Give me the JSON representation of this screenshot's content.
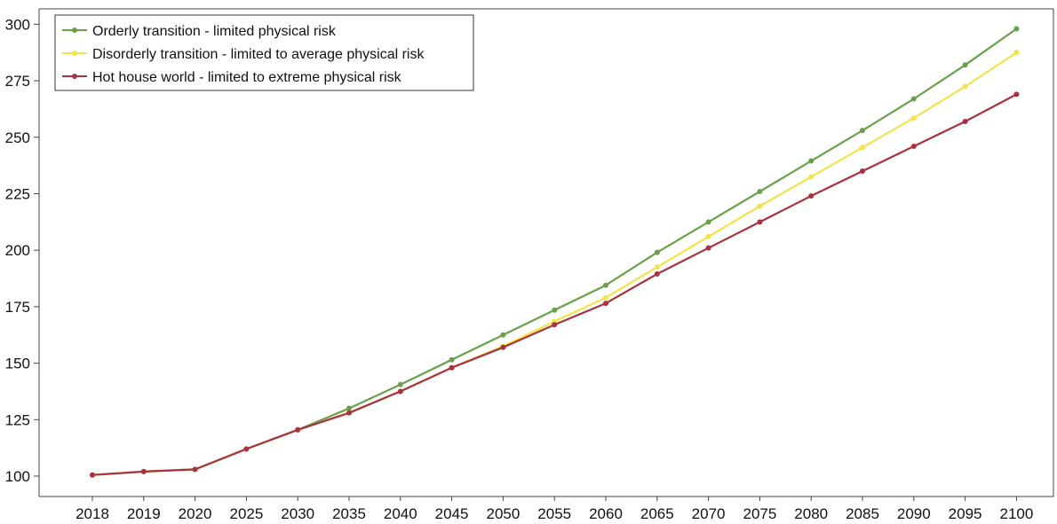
{
  "chart_data": {
    "type": "line",
    "title": "",
    "xlabel": "",
    "ylabel": "",
    "categories": [
      "2018",
      "2019",
      "2020",
      "2025",
      "2030",
      "2035",
      "2040",
      "2045",
      "2050",
      "2055",
      "2060",
      "2065",
      "2070",
      "2075",
      "2080",
      "2085",
      "2090",
      "2095",
      "2100"
    ],
    "ylim": [
      92,
      305
    ],
    "yticks": [
      100,
      125,
      150,
      175,
      200,
      225,
      250,
      275,
      300
    ],
    "grid": false,
    "legend": "top-left",
    "series": [
      {
        "name": "Orderly transition - limited physical risk",
        "color": "#6aa04c",
        "values": [
          100.5,
          102,
          103,
          112,
          120.5,
          130,
          140.5,
          151.5,
          162.5,
          173.5,
          184.5,
          199,
          212.5,
          226,
          239.5,
          253,
          267,
          282,
          298
        ]
      },
      {
        "name": "Disorderly transition - limited to average physical risk",
        "color": "#f2e34a",
        "values": [
          100.5,
          102,
          103,
          112,
          120.5,
          128,
          137.5,
          148,
          157.5,
          168.5,
          179,
          192.5,
          206,
          219.5,
          232.5,
          245.5,
          258.5,
          272.5,
          287.5
        ]
      },
      {
        "name": "Hot house world - limited to extreme physical risk",
        "color": "#a8323e",
        "values": [
          100.5,
          102,
          103,
          112,
          120.5,
          128,
          137.5,
          148,
          157,
          167,
          176.5,
          189.5,
          201,
          212.5,
          224,
          235,
          246,
          257,
          269
        ]
      }
    ]
  }
}
